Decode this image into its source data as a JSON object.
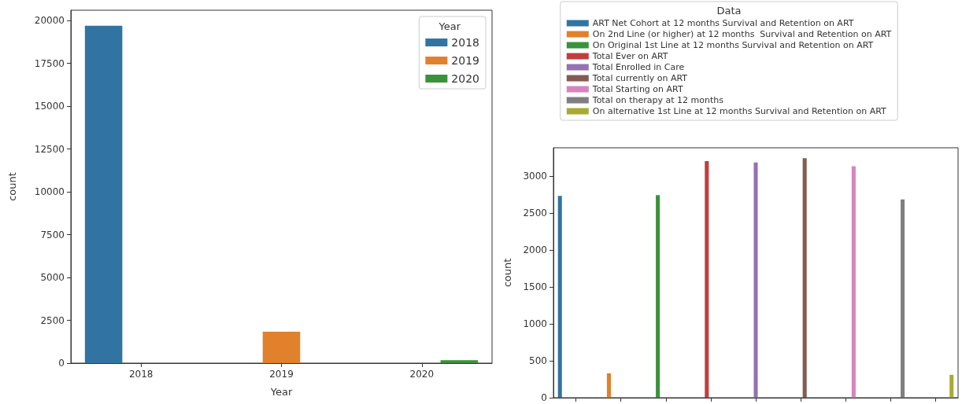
{
  "chart_data": [
    {
      "type": "bar",
      "xlabel": "Year",
      "ylabel": "count",
      "legend_title": "Year",
      "legend": "top right",
      "categories": [
        "2018",
        "2019",
        "2020"
      ],
      "ylim": [
        0,
        20600
      ],
      "yticks": [
        0,
        2500,
        5000,
        7500,
        10000,
        12500,
        15000,
        17500,
        20000
      ],
      "series": [
        {
          "name": "2018",
          "color": "#3274a1",
          "values": [
            19690,
            null,
            null
          ]
        },
        {
          "name": "2019",
          "color": "#e1812c",
          "values": [
            null,
            1830,
            null
          ]
        },
        {
          "name": "2020",
          "color": "#3a923a",
          "values": [
            null,
            null,
            170
          ]
        }
      ]
    },
    {
      "type": "bar",
      "ylabel": "count",
      "legend_title": "Data",
      "legend": "top",
      "tick_labels": "y",
      "categories": [
        null,
        null,
        null,
        null,
        null,
        null,
        null,
        null,
        null
      ],
      "ylim": [
        0,
        3380
      ],
      "yticks": [
        0,
        500,
        1000,
        1500,
        2000,
        2500,
        3000
      ],
      "series": [
        {
          "name": "ART Net Cohort at 12 months Survival and Retention on ART",
          "color": "#3274a1",
          "values": [
            2730,
            null,
            null,
            null,
            null,
            null,
            null,
            null,
            null
          ]
        },
        {
          "name": "On 2nd Line (or higher) at 12 months  Survival and Retention on ART",
          "color": "#e1812c",
          "values": [
            null,
            330,
            null,
            null,
            null,
            null,
            null,
            null,
            null
          ]
        },
        {
          "name": "On Original 1st Line at 12 months Survival and Retention on ART",
          "color": "#3a923a",
          "values": [
            null,
            null,
            2740,
            null,
            null,
            null,
            null,
            null,
            null
          ]
        },
        {
          "name": "Total Ever on ART",
          "color": "#c03d3e",
          "values": [
            null,
            null,
            null,
            3200,
            null,
            null,
            null,
            null,
            null
          ]
        },
        {
          "name": "Total Enrolled in Care",
          "color": "#9372b2",
          "values": [
            null,
            null,
            null,
            null,
            3180,
            null,
            null,
            null,
            null
          ]
        },
        {
          "name": "Total currently on ART",
          "color": "#845b53",
          "values": [
            null,
            null,
            null,
            null,
            null,
            3240,
            null,
            null,
            null
          ]
        },
        {
          "name": "Total Starting on ART",
          "color": "#d684bd",
          "values": [
            null,
            null,
            null,
            null,
            null,
            null,
            3130,
            null,
            null
          ]
        },
        {
          "name": "Total on therapy at 12 months",
          "color": "#7f7f7f",
          "values": [
            null,
            null,
            null,
            null,
            null,
            null,
            null,
            2680,
            null
          ]
        },
        {
          "name": "On alternative 1st Line at 12 months Survival and Retention on ART",
          "color": "#a9aa35",
          "values": [
            null,
            null,
            null,
            null,
            null,
            null,
            null,
            null,
            310
          ]
        }
      ]
    }
  ]
}
